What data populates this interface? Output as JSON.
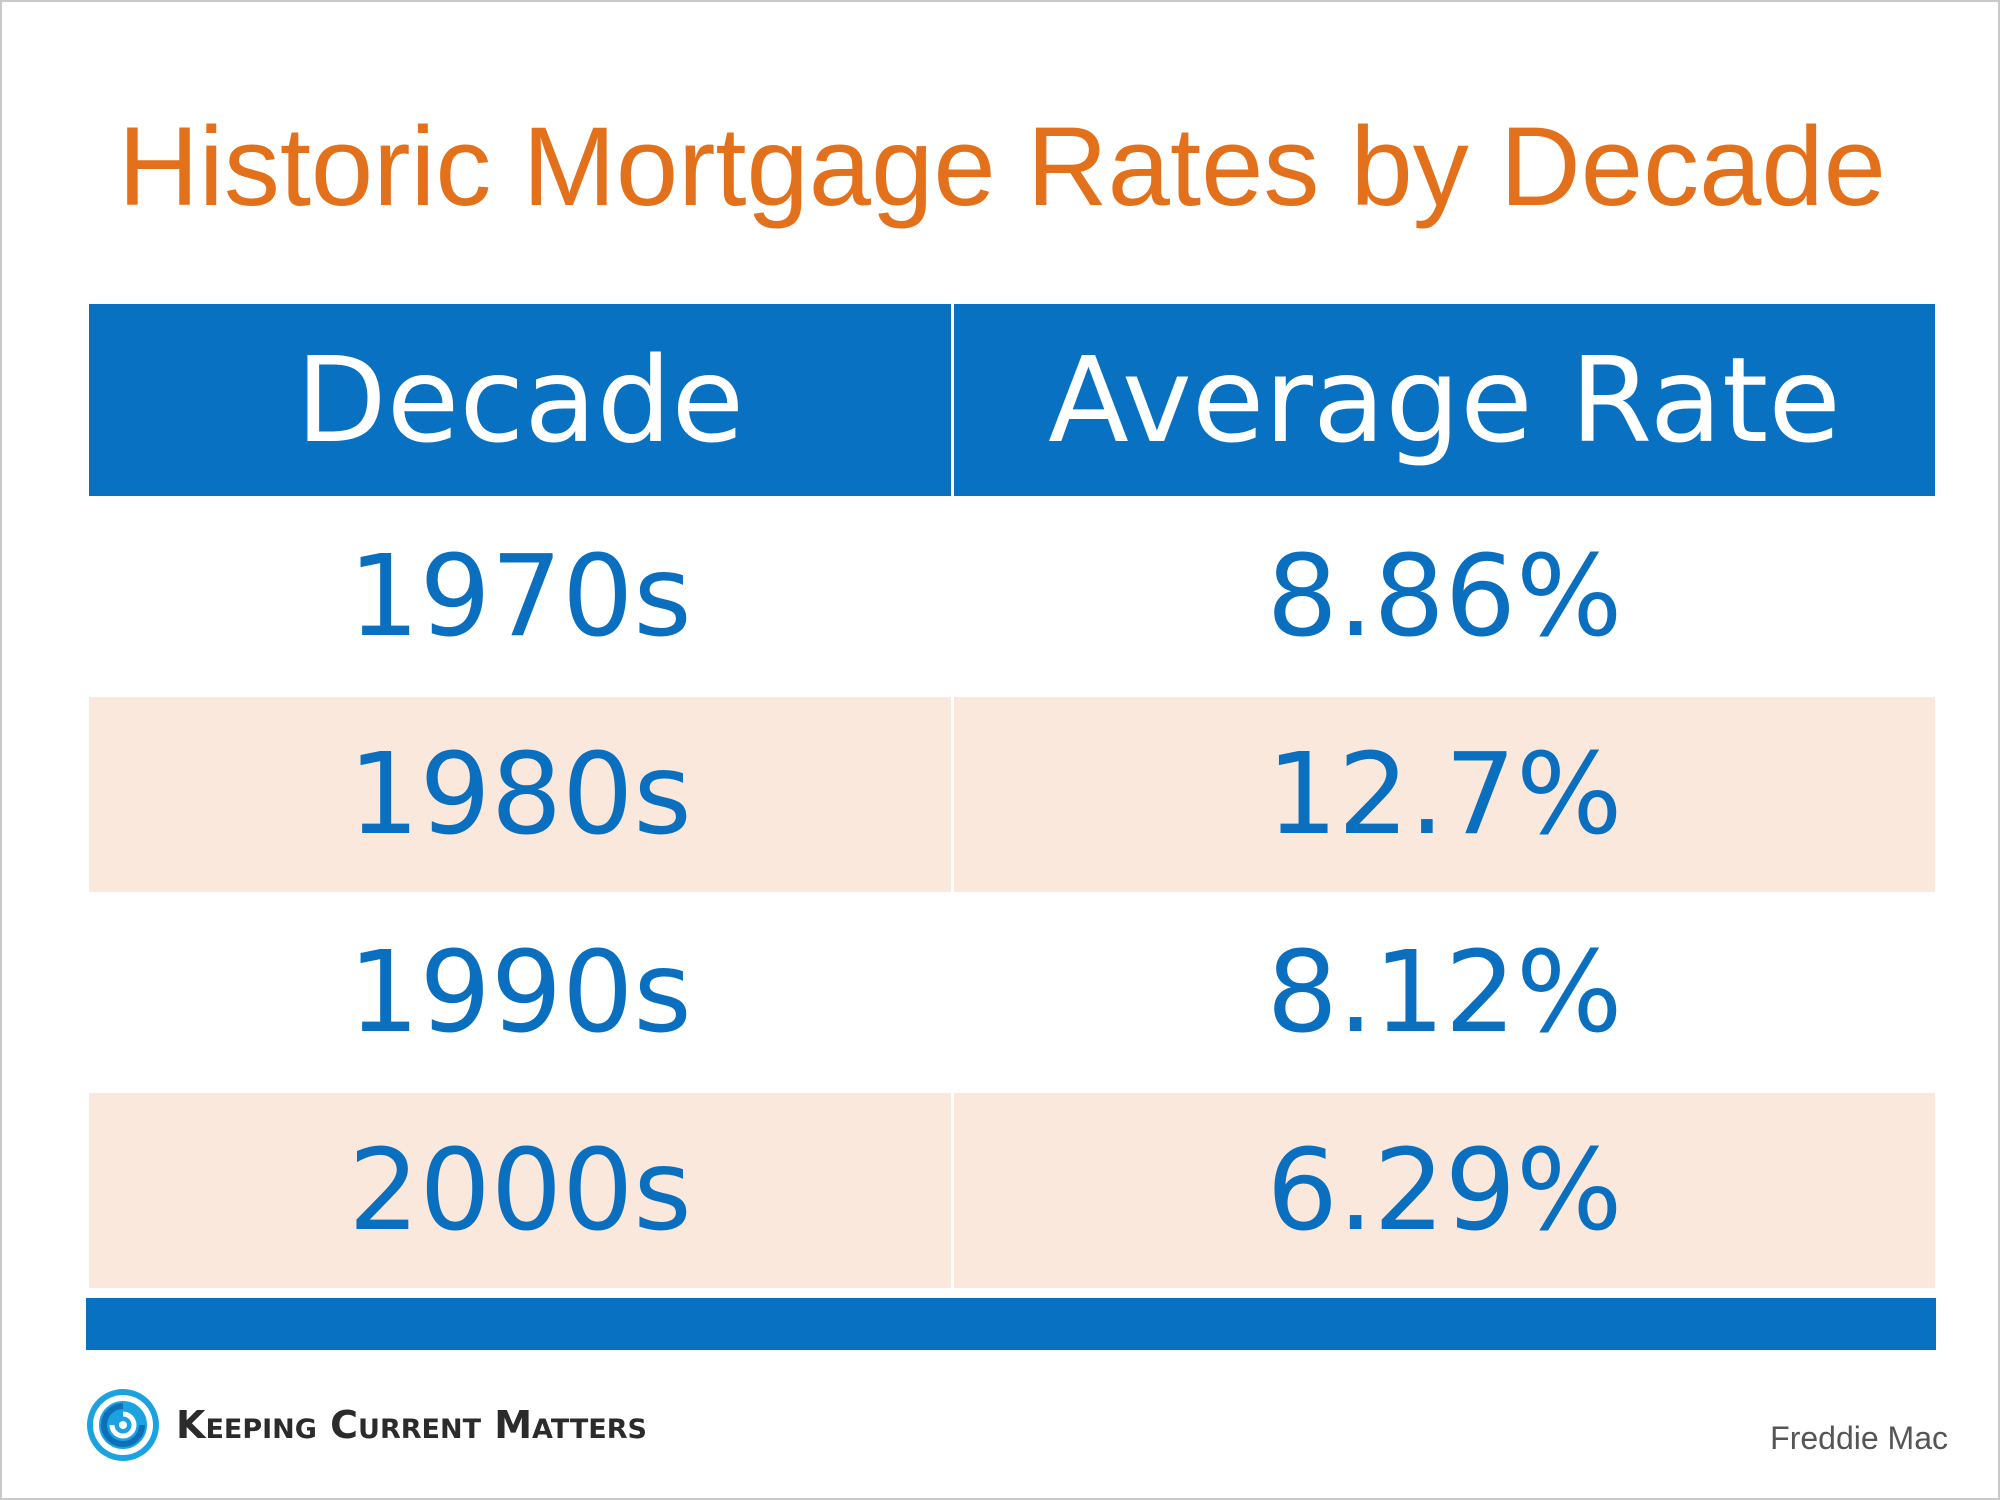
{
  "title": "Historic Mortgage Rates by Decade",
  "chart_data": {
    "type": "table",
    "title": "Historic Mortgage Rates by Decade",
    "columns": [
      "Decade",
      "Average Rate"
    ],
    "rows": [
      [
        "1970s",
        "8.86%"
      ],
      [
        "1980s",
        "12.7%"
      ],
      [
        "1990s",
        "8.12%"
      ],
      [
        "2000s",
        "6.29%"
      ]
    ],
    "values": [
      8.86,
      12.7,
      8.12,
      6.29
    ]
  },
  "branding": {
    "logo_text": "Keeping Current Matters"
  },
  "source": "Freddie Mac",
  "colors": {
    "title": "#e3711b",
    "header_bg": "#0871c2",
    "value_text": "#0b6fbf",
    "shaded_row": "#fbe8dc"
  }
}
